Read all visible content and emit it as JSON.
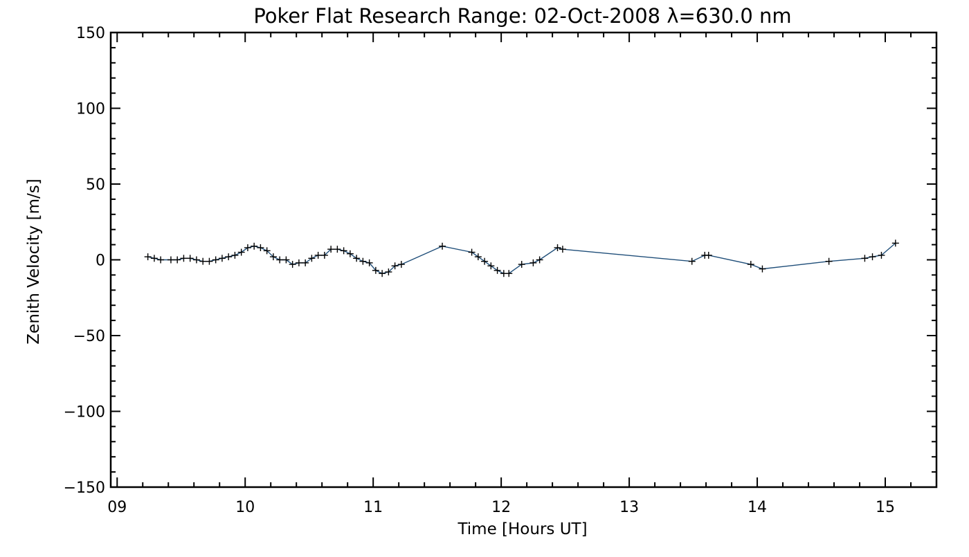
{
  "chart_data": {
    "type": "line",
    "title": "Poker Flat Research Range: 02-Oct-2008 λ=630.0 nm",
    "xlabel": "Time [Hours UT]",
    "ylabel": "Zenith Velocity [m/s]",
    "xlim": [
      8.95,
      15.4
    ],
    "ylim": [
      -150,
      150
    ],
    "x_ticks": [
      {
        "value": 9,
        "label": "09"
      },
      {
        "value": 10,
        "label": "10"
      },
      {
        "value": 11,
        "label": "11"
      },
      {
        "value": 12,
        "label": "12"
      },
      {
        "value": 13,
        "label": "13"
      },
      {
        "value": 14,
        "label": "14"
      },
      {
        "value": 15,
        "label": "15"
      }
    ],
    "y_ticks": [
      {
        "value": 150,
        "label": "150"
      },
      {
        "value": 100,
        "label": "100"
      },
      {
        "value": 50,
        "label": "50"
      },
      {
        "value": 0,
        "label": "0"
      },
      {
        "value": -50,
        "label": "−50"
      },
      {
        "value": -100,
        "label": "−100"
      },
      {
        "value": -150,
        "label": "−150"
      }
    ],
    "grid": false,
    "marker": "plus",
    "line_color": "#1f4e79",
    "marker_color": "#000000",
    "x": [
      9.24,
      9.29,
      9.34,
      9.42,
      9.47,
      9.52,
      9.57,
      9.62,
      9.67,
      9.72,
      9.77,
      9.82,
      9.87,
      9.92,
      9.97,
      10.02,
      10.07,
      10.12,
      10.17,
      10.22,
      10.27,
      10.32,
      10.37,
      10.42,
      10.47,
      10.52,
      10.57,
      10.62,
      10.67,
      10.72,
      10.77,
      10.82,
      10.87,
      10.92,
      10.97,
      11.02,
      11.07,
      11.12,
      11.17,
      11.22,
      11.54,
      11.77,
      11.82,
      11.87,
      11.92,
      11.97,
      12.02,
      12.06,
      12.16,
      12.25,
      12.3,
      12.44,
      12.48,
      13.49,
      13.59,
      13.62,
      13.95,
      14.04,
      14.56,
      14.84,
      14.9,
      14.97,
      15.08
    ],
    "y": [
      2,
      1,
      0,
      0,
      0,
      1,
      1,
      0,
      -1,
      -1,
      0,
      1,
      2,
      3,
      5,
      8,
      9,
      8,
      6,
      2,
      0,
      0,
      -3,
      -2,
      -2,
      1,
      3,
      3,
      7,
      7,
      6,
      4,
      1,
      -1,
      -2,
      -7,
      -9,
      -8,
      -4,
      -3,
      9,
      5,
      2,
      -1,
      -4,
      -7,
      -9,
      -9,
      -3,
      -2,
      0,
      8,
      7,
      -1,
      3,
      3,
      -3,
      -6,
      -1,
      1,
      2,
      3,
      11
    ]
  }
}
